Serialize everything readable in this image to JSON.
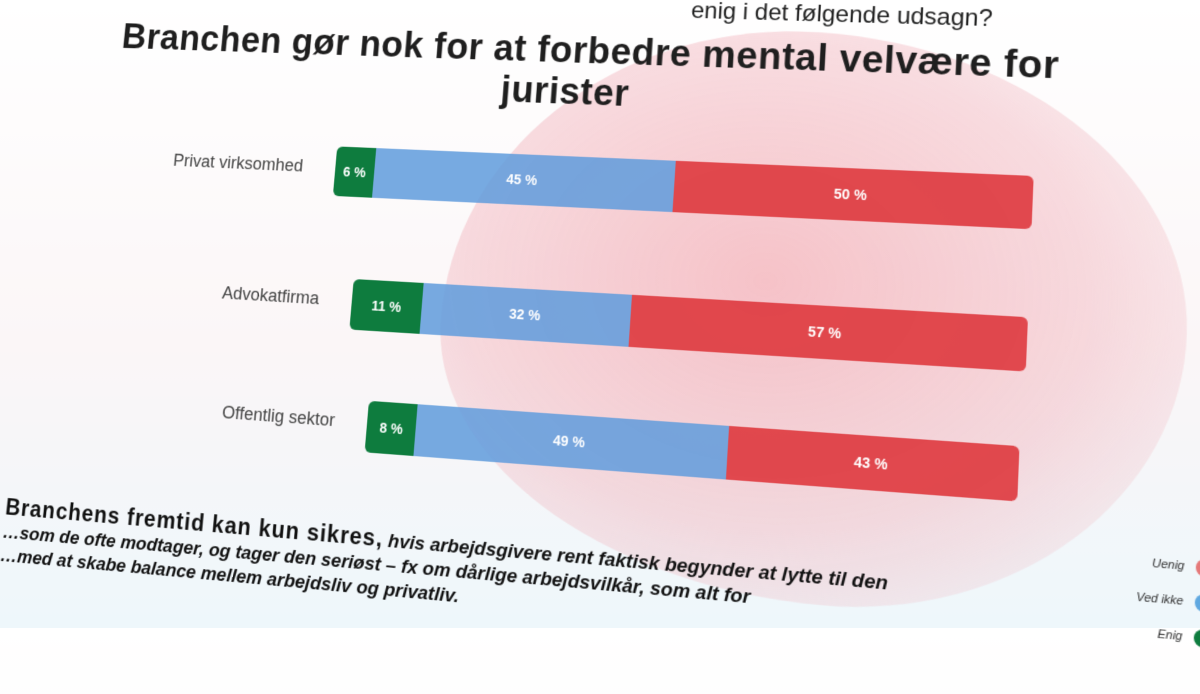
{
  "question_partial": "enig i det følgende udsagn?",
  "chart_data": {
    "type": "bar",
    "stacked": true,
    "orientation": "horizontal",
    "title": "Branchen gør nok for at forbedre mental velvære for jurister",
    "categories": [
      "Privat virksomhed",
      "Advokatfirma",
      "Offentlig sektor"
    ],
    "series": [
      {
        "name": "Enig",
        "values": [
          6,
          11,
          8
        ],
        "labels": [
          "6 %",
          "11 %",
          "8 %"
        ],
        "color": "#0e7c3e"
      },
      {
        "name": "Ved ikke",
        "values": [
          45,
          32,
          49
        ],
        "labels": [
          "45 %",
          "32 %",
          "49 %"
        ],
        "color": "#5f9bdc"
      },
      {
        "name": "Uenig",
        "values": [
          50,
          57,
          43
        ],
        "labels": [
          "50 %",
          "57 %",
          "43 %"
        ],
        "color": "#de3c41"
      }
    ],
    "legend": {
      "placement": "bottom-right",
      "items": [
        {
          "label": "Uenig",
          "color": "#e57878"
        },
        {
          "label": "Ved ikke",
          "color": "#5fa8e0"
        },
        {
          "label": "Enig",
          "color": "#0e7c3e"
        }
      ]
    }
  },
  "quote": {
    "lead": "Branchens fremtid kan kun sikres,",
    "line1": "hvis arbejdsgivere rent faktisk begynder at lytte til den",
    "line2": "…som de ofte modtager, og tager den seriøst – fx om dårlige arbejdsvilkår, som alt for",
    "line3": "…med at skabe balance mellem arbejdsliv og privatliv."
  }
}
